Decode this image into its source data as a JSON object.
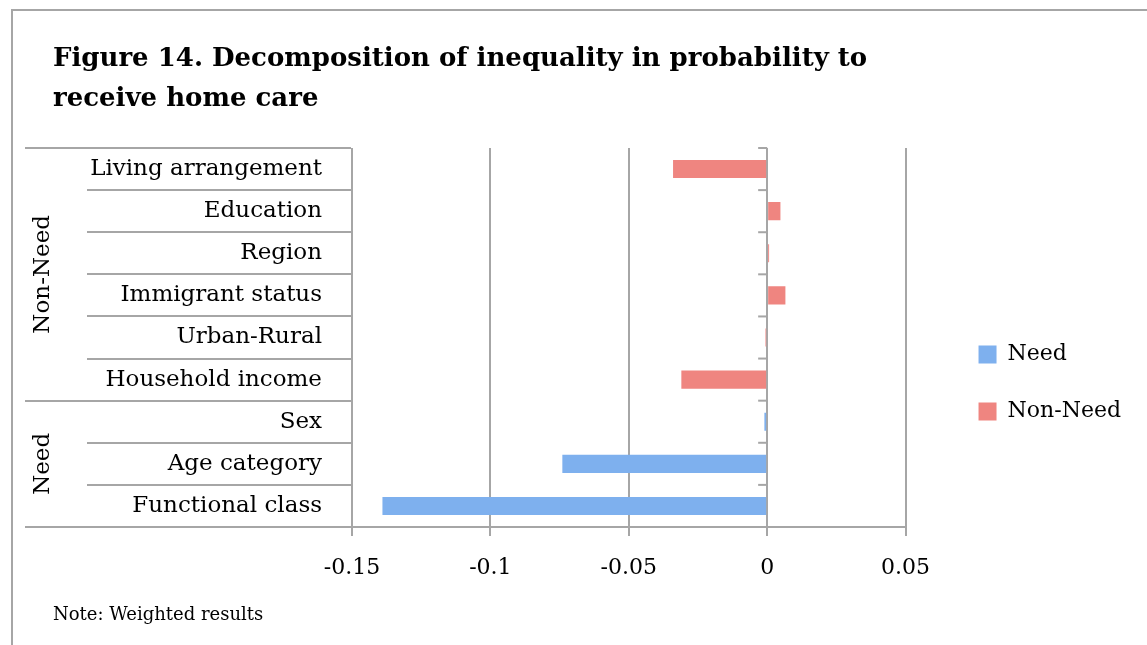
{
  "chart_data": {
    "type": "bar",
    "orientation": "horizontal",
    "title": "Figure 14. Decomposition of inequality in probability to receive home care",
    "categories": [
      "Living arrangement",
      "Education",
      "Region",
      "Immigrant status",
      "Urban-Rural",
      "Household income",
      "Sex",
      "Age category",
      "Functional class"
    ],
    "series": [
      {
        "name": "Need",
        "color": "#7eb0ee",
        "values": [
          null,
          null,
          null,
          null,
          null,
          null,
          -0.001,
          -0.074,
          -0.139
        ]
      },
      {
        "name": "Non-Need",
        "color": "#ef8580",
        "values": [
          -0.034,
          0.0048,
          0.0007,
          0.0066,
          -0.0006,
          -0.031,
          null,
          null,
          null
        ]
      }
    ],
    "xlim": [
      -0.15,
      0.05
    ],
    "xticks": [
      -0.15,
      -0.1,
      -0.05,
      0,
      0.05
    ],
    "grid": "x",
    "legend": "right",
    "annotations": [
      "Note: Weighted results"
    ]
  }
}
